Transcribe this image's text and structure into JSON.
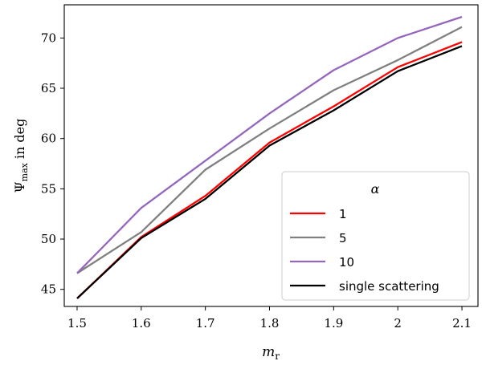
{
  "chart_data": {
    "type": "line",
    "xlabel": "m",
    "xlabel_sub": "r",
    "ylabel": "Ψ",
    "ylabel_sub": "max",
    "ylabel_suffix": " in deg",
    "xlim": [
      1.48,
      2.125
    ],
    "ylim": [
      43.3,
      73.3
    ],
    "x_ticks": [
      1.5,
      1.6,
      1.7,
      1.8,
      1.9,
      2.0,
      2.1
    ],
    "x_tick_labels": [
      "1.5",
      "1.6",
      "1.7",
      "1.8",
      "1.9",
      "2",
      "2.1"
    ],
    "y_ticks": [
      45,
      50,
      55,
      60,
      65,
      70
    ],
    "y_tick_labels": [
      "45",
      "50",
      "55",
      "60",
      "65",
      "70"
    ],
    "grid": false,
    "legend": {
      "title": "α",
      "placement": "bottom-right"
    },
    "x": [
      1.5,
      1.6,
      1.7,
      1.8,
      1.9,
      2.0,
      2.1
    ],
    "series": [
      {
        "name": "1",
        "color": "#ff0000",
        "values": [
          44.1,
          50.2,
          54.3,
          59.6,
          63.2,
          67.1,
          69.6
        ]
      },
      {
        "name": "5",
        "color": "#808080",
        "values": [
          46.6,
          50.7,
          56.9,
          61.0,
          64.8,
          67.8,
          71.1
        ]
      },
      {
        "name": "10",
        "color": "#9467bd",
        "values": [
          46.6,
          53.1,
          57.8,
          62.5,
          66.8,
          70.0,
          72.1
        ]
      },
      {
        "name": "single scattering",
        "color": "#000000",
        "values": [
          44.1,
          50.1,
          54.0,
          59.3,
          62.8,
          66.7,
          69.2
        ]
      }
    ]
  }
}
